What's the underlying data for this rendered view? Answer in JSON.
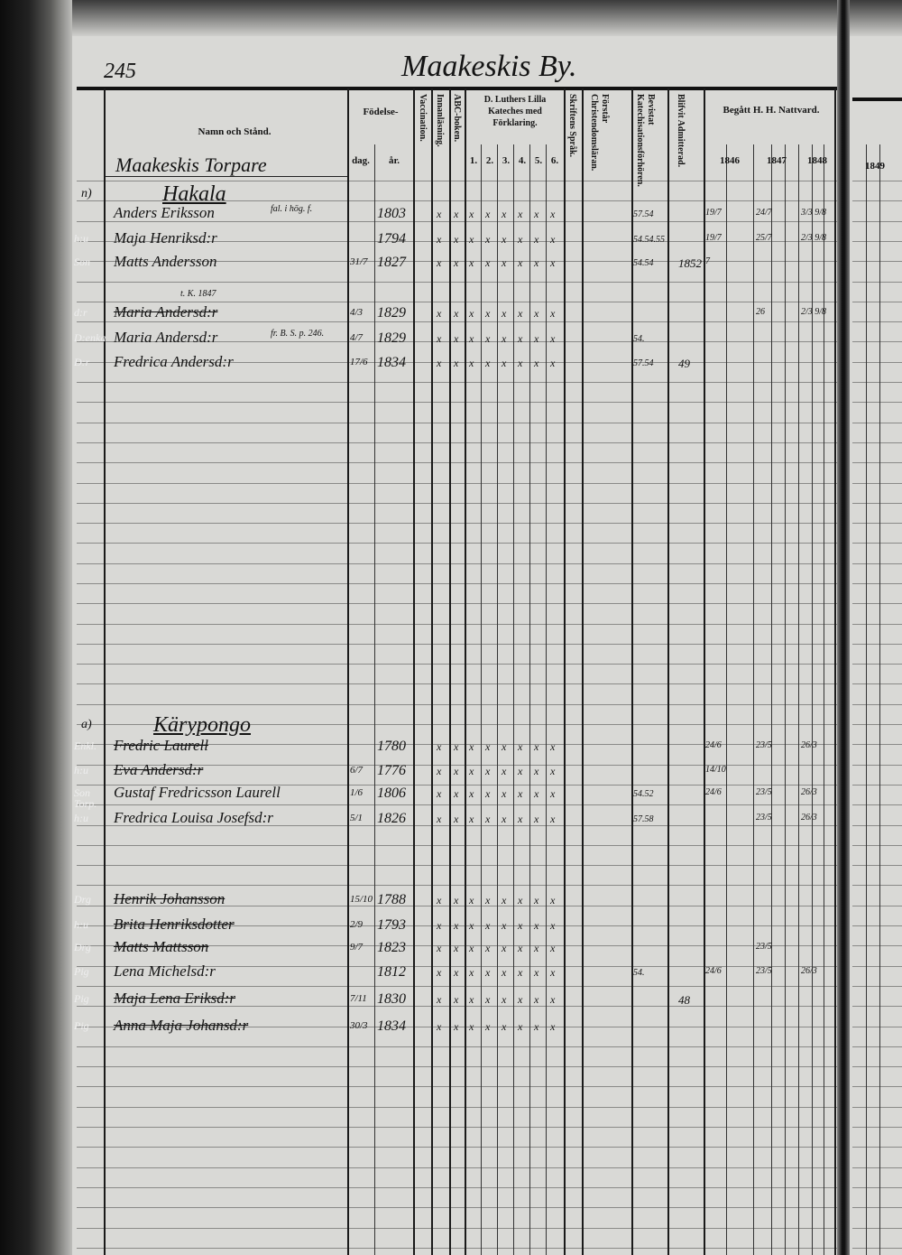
{
  "page_number": "245",
  "page_title": "Maakeskis By.",
  "headers": {
    "name": "Namn och Stånd.",
    "birth": "Födelse-",
    "day": "dag.",
    "year": "år.",
    "vaccination": "Vaccination.",
    "reading": "Innanläsning.",
    "abc": "ABC-boken.",
    "catechism": "D. Luthers Lilla Kateches med Förklaring.",
    "catechism_parts": [
      "1.",
      "2.",
      "3.",
      "4.",
      "5.",
      "6."
    ],
    "scripture": "Skriftens Språk.",
    "understands": "Förstår Christendomsläran.",
    "attended": "Bevistat Katechisationsförhören.",
    "admitted": "Blifvit Admitterad.",
    "communion": "Begått H. H. Nattvard.",
    "years": [
      "1846",
      "1847",
      "1848"
    ],
    "next_page_year": "1849"
  },
  "sections": [
    {
      "village": "Maakeskis Torpare",
      "place": "Hakala",
      "prefix": "n)"
    },
    {
      "place": "Kärypongo",
      "prefix": "a)"
    }
  ],
  "rows": [
    {
      "role": "",
      "name": "Anders Eriksson",
      "note": "fal. i hög. f.",
      "day": "",
      "year": "1803",
      "marks": "xxxxxxxx",
      "attended": "57.54",
      "admitted": "",
      "c1846": "19/7",
      "c1847": "24/7",
      "c1848": "3/3 9/8",
      "struck": false
    },
    {
      "role": "h:u",
      "name": "Maja Henriksd:r",
      "day": "",
      "year": "1794",
      "marks": "xxxxxxxx",
      "attended": "54.54.55",
      "admitted": "",
      "c1846": "19/7",
      "c1847": "25/7",
      "c1848": "2/3 9/8",
      "struck": false
    },
    {
      "role": "Son",
      "name": "Matts Andersson",
      "day": "31/7",
      "year": "1827",
      "marks": "xxxxxxxx",
      "attended": "54.54",
      "admitted": "1852",
      "c1846": "7",
      "c1847": "",
      "c1848": "",
      "struck": false
    },
    {
      "role": "d:r",
      "name": "Maria Andersd:r",
      "note": "t. K. 1847",
      "day": "4/3",
      "year": "1829",
      "marks": "xxxxxxxx",
      "attended": "",
      "admitted": "",
      "c1846": "",
      "c1847": "26",
      "c1848": "2/3 9/8",
      "struck": true
    },
    {
      "role": "D:enka",
      "name": "Maria Andersd:r",
      "note": "fr. B. S. p. 246.",
      "day": "4/7",
      "year": "1829",
      "marks": "xxxxxxxx",
      "attended": "54.",
      "admitted": "",
      "c1846": "",
      "c1847": "",
      "c1848": "",
      "struck": false
    },
    {
      "role": "D:r",
      "name": "Fredrica Andersd:r",
      "day": "17/6",
      "year": "1834",
      "marks": "xxxxxxxx",
      "attended": "57.54",
      "admitted": "49",
      "c1846": "",
      "c1847": "",
      "c1848": "",
      "struck": false
    },
    {
      "role": "Enkl.",
      "name": "Fredric Laurell",
      "day": "",
      "year": "1780",
      "marks": "xxxxxxxx",
      "attended": "",
      "admitted": "",
      "c1846": "24/6",
      "c1847": "23/5",
      "c1848": "26/3",
      "struck": true
    },
    {
      "role": "h:u",
      "name": "Eva Andersd:r",
      "day": "6/7",
      "year": "1776",
      "marks": "xxxxxxxx",
      "attended": "",
      "admitted": "",
      "c1846": "14/10",
      "c1847": "",
      "c1848": "",
      "struck": true
    },
    {
      "role": "Son Torp.",
      "name": "Gustaf Fredricsson Laurell",
      "day": "1/6",
      "year": "1806",
      "marks": "xxxxxxxx",
      "attended": "54.52",
      "admitted": "",
      "c1846": "24/6",
      "c1847": "23/5",
      "c1848": "26/3",
      "struck": false
    },
    {
      "role": "h:u",
      "name": "Fredrica Louisa Josefsd:r",
      "day": "5/1",
      "year": "1826",
      "marks": "xxxxxxxx",
      "attended": "57.58",
      "admitted": "",
      "c1846": "",
      "c1847": "23/5",
      "c1848": "26/3",
      "struck": false
    },
    {
      "role": "Drg",
      "name": "Henrik Johansson",
      "day": "15/10",
      "year": "1788",
      "marks": "xxxxxxxx",
      "attended": "",
      "admitted": "",
      "c1846": "",
      "c1847": "",
      "c1848": "",
      "struck": true
    },
    {
      "role": "h:u",
      "name": "Brita Henriksdotter",
      "day": "2/9",
      "year": "1793",
      "marks": "xxxxxxxx",
      "attended": "",
      "admitted": "",
      "c1846": "",
      "c1847": "",
      "c1848": "",
      "struck": true
    },
    {
      "role": "Drg",
      "name": "Matts Mattsson",
      "day": "9/7",
      "year": "1823",
      "marks": "xxxxxxxx",
      "attended": "",
      "admitted": "",
      "c1846": "",
      "c1847": "23/5",
      "c1848": "",
      "struck": true
    },
    {
      "role": "Pig",
      "name": "Lena Michelsd:r",
      "day": "",
      "year": "1812",
      "marks": "xxxxxxxx",
      "attended": "54.",
      "admitted": "",
      "c1846": "24/6",
      "c1847": "23/5",
      "c1848": "26/3",
      "struck": false
    },
    {
      "role": "Pig",
      "name": "Maja Lena Eriksd:r",
      "day": "7/11",
      "year": "1830",
      "marks": "xxxxxxxx",
      "attended": "",
      "admitted": "48",
      "c1846": "",
      "c1847": "",
      "c1848": "",
      "struck": true
    },
    {
      "role": "Pig",
      "name": "Anna Maja Johansd:r",
      "day": "30/3",
      "year": "1834",
      "marks": "xxxxxxxx",
      "attended": "",
      "admitted": "",
      "c1846": "",
      "c1847": "",
      "c1848": "",
      "struck": true
    }
  ]
}
